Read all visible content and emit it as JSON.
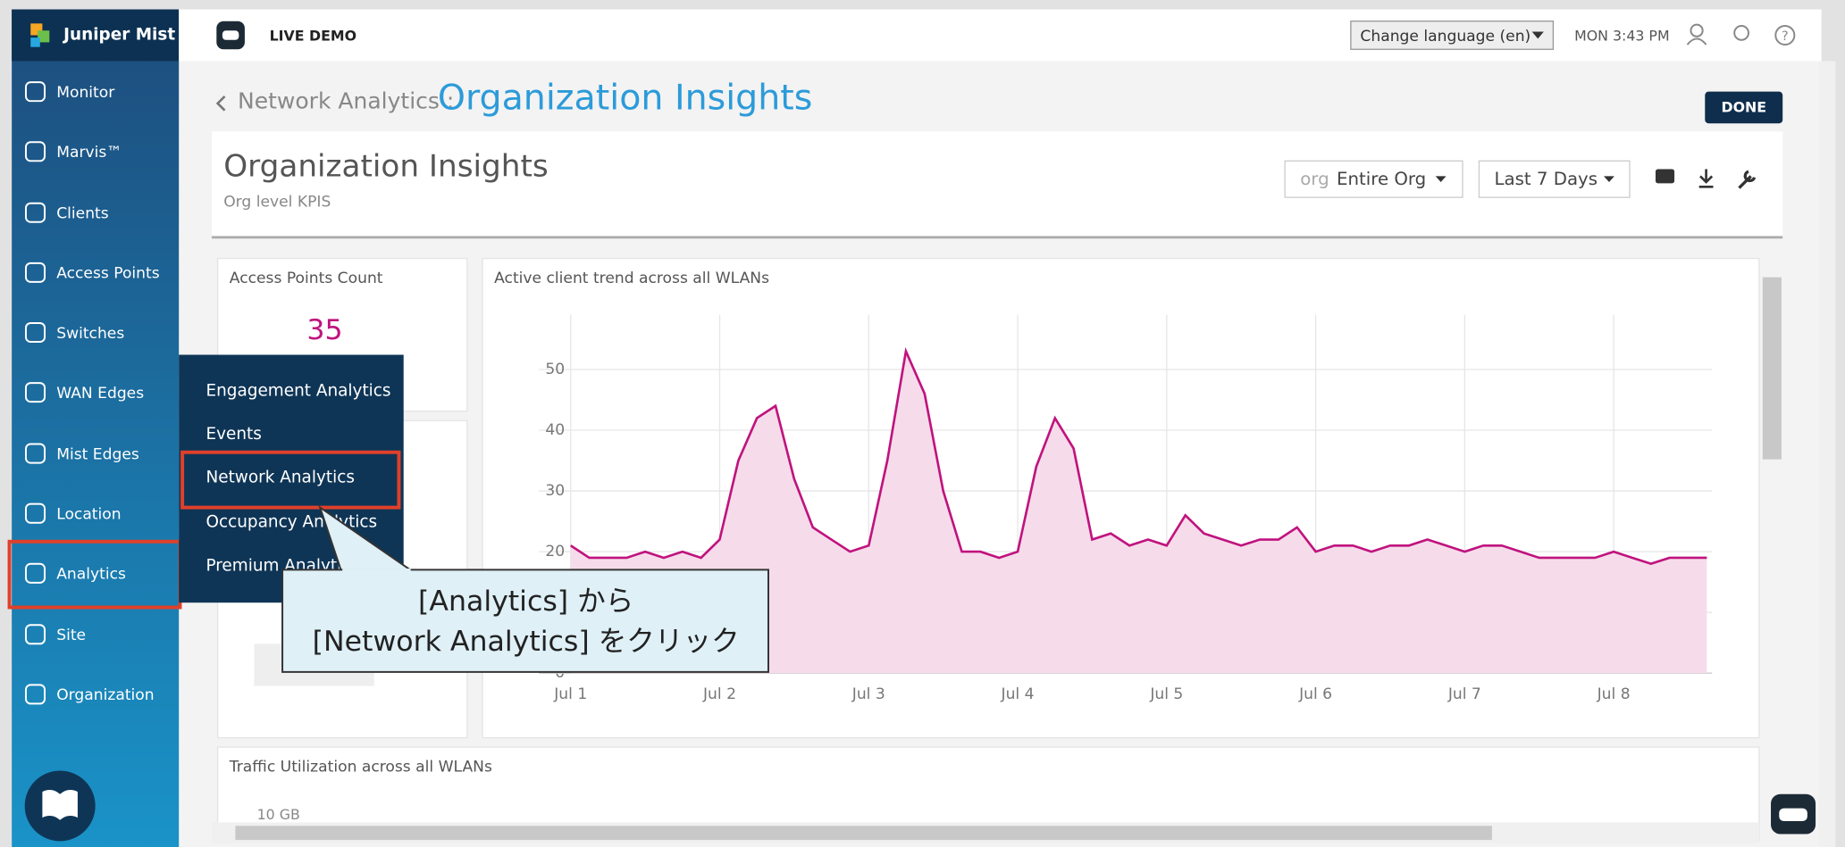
{
  "brand": "Juniper Mist",
  "nav": [
    "Monitor",
    "Marvis™",
    "Clients",
    "Access Points",
    "Switches",
    "WAN Edges",
    "Mist Edges",
    "Location",
    "Analytics",
    "Site",
    "Organization"
  ],
  "topbar": {
    "live": "LIVE DEMO",
    "language": "Change language (en)",
    "time": "MON 3:43 PM"
  },
  "breadcrumb": {
    "parent": "Network Analytics :",
    "current": "Organization Insights"
  },
  "done": "DONE",
  "page": {
    "title": "Organization Insights",
    "subtitle": "Org level KPIS",
    "scope_label": "org",
    "scope": "Entire Org",
    "range": "Last 7 Days"
  },
  "ap_card": {
    "title": "Access Points Count",
    "value": 35
  },
  "submenu": [
    "Engagement Analytics",
    "Events",
    "Network Analytics",
    "Occupancy Analytics",
    "Premium Analytics"
  ],
  "callout": [
    "[Analytics] から",
    "[Network Analytics] をクリック"
  ],
  "traffic": {
    "title": "Traffic Utilization across all WLANs",
    "ytick": "10 GB"
  },
  "chart_data": {
    "type": "line",
    "title": "Active client trend across all WLANs",
    "x": [
      1,
      1.125,
      1.25,
      1.375,
      1.5,
      1.625,
      1.75,
      1.875,
      2,
      2.125,
      2.25,
      2.375,
      2.5,
      2.625,
      2.75,
      2.875,
      3,
      3.125,
      3.25,
      3.375,
      3.5,
      3.625,
      3.75,
      3.875,
      4,
      4.125,
      4.25,
      4.375,
      4.5,
      4.625,
      4.75,
      4.875,
      5,
      5.125,
      5.25,
      5.375,
      5.5,
      5.625,
      5.75,
      5.875,
      6,
      6.125,
      6.25,
      6.375,
      6.5,
      6.625,
      6.75,
      6.875,
      7,
      7.125,
      7.25,
      7.375,
      7.5,
      7.625,
      7.75,
      7.875,
      8,
      8.125,
      8.25,
      8.375,
      8.5,
      8.625
    ],
    "series": [
      {
        "name": "Active clients",
        "color": "#c0137e",
        "values": [
          21,
          19,
          19,
          19,
          20,
          19,
          20,
          19,
          22,
          35,
          42,
          44,
          32,
          24,
          22,
          20,
          21,
          35,
          53,
          46,
          30,
          20,
          20,
          19,
          20,
          34,
          42,
          37,
          22,
          23,
          21,
          22,
          21,
          26,
          23,
          22,
          21,
          22,
          22,
          24,
          20,
          21,
          21,
          20,
          21,
          21,
          22,
          21,
          20,
          21,
          21,
          20,
          19,
          19,
          19,
          19,
          20,
          19,
          18,
          19,
          19,
          19
        ]
      }
    ],
    "xlim": [
      1,
      8.66
    ],
    "xticks": [
      {
        "value": 1,
        "label": "Jul 1"
      },
      {
        "value": 2,
        "label": "Jul 2"
      },
      {
        "value": 3,
        "label": "Jul 3"
      },
      {
        "value": 4,
        "label": "Jul 4"
      },
      {
        "value": 5,
        "label": "Jul 5"
      },
      {
        "value": 6,
        "label": "Jul 6"
      },
      {
        "value": 7,
        "label": "Jul 7"
      },
      {
        "value": 8,
        "label": "Jul 8"
      }
    ],
    "ylim": [
      0,
      59
    ],
    "yticks": [
      0,
      10,
      20,
      30,
      40,
      50
    ],
    "grid": true,
    "fill": "#f6dceb"
  }
}
